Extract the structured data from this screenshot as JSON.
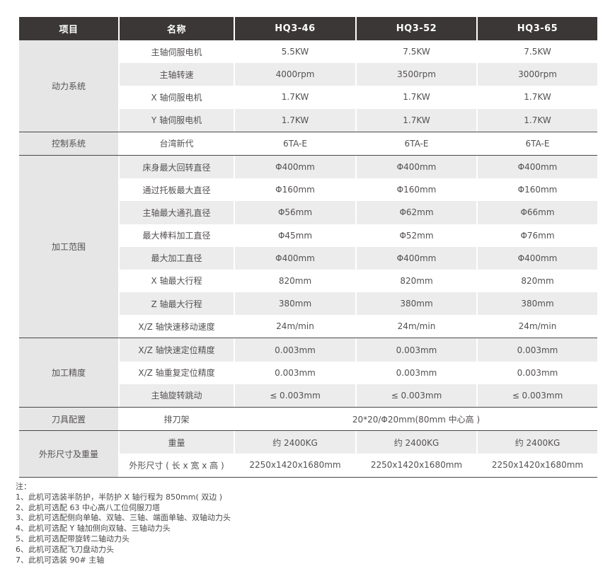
{
  "table": {
    "header": [
      "项目",
      "名称",
      "HQ3-46",
      "HQ3-52",
      "HQ3-65"
    ],
    "groups": [
      {
        "name": "动力系统",
        "rows": [
          {
            "label": "主轴伺服电机",
            "values": [
              "5.5KW",
              "7.5KW",
              "7.5KW"
            ]
          },
          {
            "label": "主轴转速",
            "values": [
              "4000rpm",
              "3500rpm",
              "3000rpm"
            ]
          },
          {
            "label": "X 轴伺服电机",
            "values": [
              "1.7KW",
              "1.7KW",
              "1.7KW"
            ]
          },
          {
            "label": "Y 轴伺服电机",
            "values": [
              "1.7KW",
              "1.7KW",
              "1.7KW"
            ]
          }
        ]
      },
      {
        "name": "控制系统",
        "rows": [
          {
            "label": "台湾新代",
            "values": [
              "6TA-E",
              "6TA-E",
              "6TA-E"
            ]
          }
        ]
      },
      {
        "name": "加工范围",
        "rows": [
          {
            "label": "床身最大回转直径",
            "values": [
              "Φ400mm",
              "Φ400mm",
              "Φ400mm"
            ]
          },
          {
            "label": "通过托板最大直径",
            "values": [
              "Φ160mm",
              "Φ160mm",
              "Φ160mm"
            ]
          },
          {
            "label": "主轴最大通孔直径",
            "values": [
              "Φ56mm",
              "Φ62mm",
              "Φ66mm"
            ]
          },
          {
            "label": "最大棒料加工直径",
            "values": [
              "Φ45mm",
              "Φ52mm",
              "Φ76mm"
            ]
          },
          {
            "label": "最大加工直径",
            "values": [
              "Φ400mm",
              "Φ400mm",
              "Φ400mm"
            ]
          },
          {
            "label": "X 轴最大行程",
            "values": [
              "820mm",
              "820mm",
              "820mm"
            ]
          },
          {
            "label": "Z 轴最大行程",
            "values": [
              "380mm",
              "380mm",
              "380mm"
            ]
          },
          {
            "label": "X/Z 轴快速移动速度",
            "values": [
              "24m/min",
              "24m/min",
              "24m/min"
            ]
          }
        ]
      },
      {
        "name": "加工精度",
        "rows": [
          {
            "label": "X/Z 轴快速定位精度",
            "values": [
              "0.003mm",
              "0.003mm",
              "0.003mm"
            ]
          },
          {
            "label": "X/Z 轴重复定位精度",
            "values": [
              "0.003mm",
              "0.003mm",
              "0.003mm"
            ]
          },
          {
            "label": "主轴旋转跳动",
            "values": [
              "≤ 0.003mm",
              "≤ 0.003mm",
              "≤ 0.003mm"
            ]
          }
        ]
      },
      {
        "name": "刀具配置",
        "rows": [
          {
            "label": "排刀架",
            "span_value": "20*20/Φ20mm(80mm 中心高 )"
          }
        ]
      },
      {
        "name": "外形尺寸及重量",
        "rows": [
          {
            "label": "重量",
            "values": [
              "约 2400KG",
              "约 2400KG",
              "约 2400KG"
            ]
          },
          {
            "label": "外形尺寸 ( 长 x 宽 x 高 )",
            "values": [
              "2250x1420x1680mm",
              "2250x1420x1680mm",
              "2250x1420x1680mm"
            ]
          }
        ]
      }
    ]
  },
  "notes": {
    "title": "注：",
    "items": [
      "1、此机可选装半防护，半防护 X 轴行程为 850mm( 双边 )",
      "2、此机可选配 63 中心高八工位伺服刀塔",
      "3、此机可选配侧向单轴、双轴、三轴、端面单轴、双轴动力头",
      "4、此机可选配 Y 轴加侧向双轴、三轴动力头",
      "5、此机可选配带旋转二轴动力头",
      "6、此机可选配飞刀盘动力头",
      "7、此机可选装 90# 主轴"
    ]
  },
  "colors": {
    "header_bg": "#3b3737",
    "header_text": "#ffffff",
    "stripe_bg": "#ececec",
    "group_column_bg": "#e6e6e6",
    "body_text": "#545050",
    "divider": "#4a4646"
  }
}
